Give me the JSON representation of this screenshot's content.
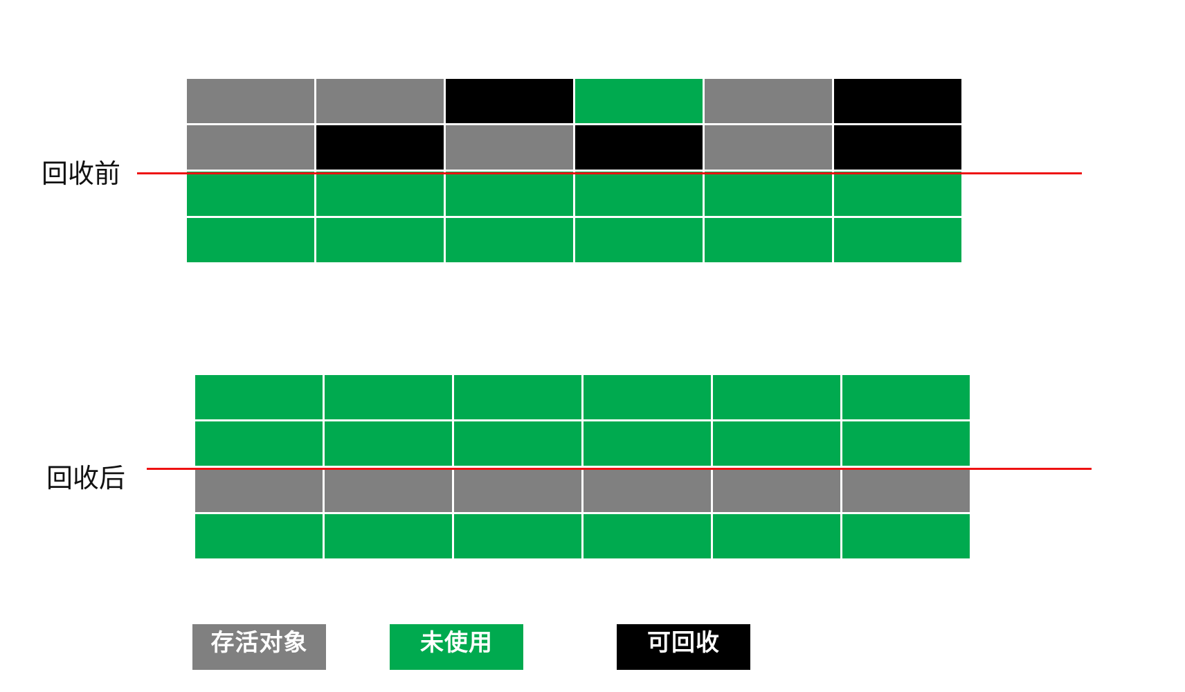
{
  "colors": {
    "live": "#808080",
    "unused": "#00aa4f",
    "garbage": "#000000"
  },
  "diagram": {
    "before": {
      "label": "回收前",
      "rows": [
        [
          "live",
          "live",
          "garbage",
          "unused",
          "live",
          "garbage"
        ],
        [
          "live",
          "garbage",
          "live",
          "garbage",
          "live",
          "garbage"
        ],
        [
          "unused",
          "unused",
          "unused",
          "unused",
          "unused",
          "unused"
        ],
        [
          "unused",
          "unused",
          "unused",
          "unused",
          "unused",
          "unused"
        ]
      ]
    },
    "after": {
      "label": "回收后",
      "rows": [
        [
          "unused",
          "unused",
          "unused",
          "unused",
          "unused",
          "unused"
        ],
        [
          "unused",
          "unused",
          "unused",
          "unused",
          "unused",
          "unused"
        ],
        [
          "live",
          "live",
          "live",
          "live",
          "live",
          "live"
        ],
        [
          "unused",
          "unused",
          "unused",
          "unused",
          "unused",
          "unused"
        ]
      ]
    }
  },
  "legend": [
    {
      "key": "live",
      "label": "存活对象"
    },
    {
      "key": "unused",
      "label": "未使用"
    },
    {
      "key": "garbage",
      "label": "可回收"
    }
  ]
}
